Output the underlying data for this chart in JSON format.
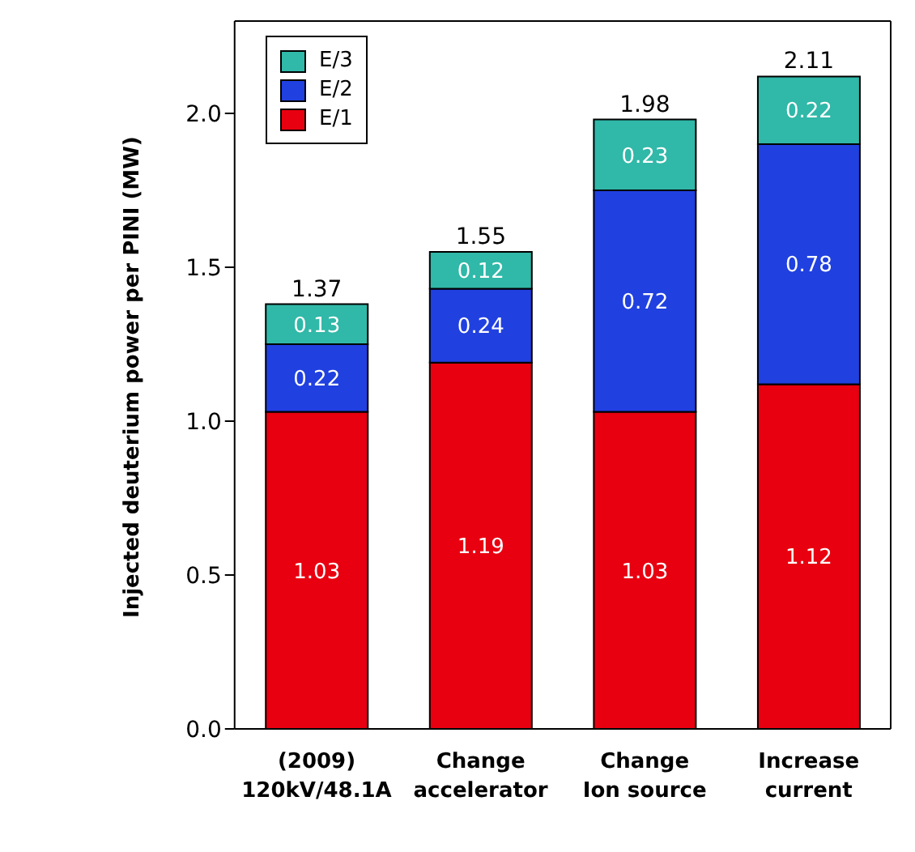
{
  "chart_data": {
    "type": "bar",
    "stacked": true,
    "ylabel": "Injected deuterium power per PINI (MW)",
    "categories": [
      "(2009)\n120kV/48.1A",
      "Change\naccelerator",
      "Change\nIon source",
      "Increase\ncurrent"
    ],
    "series": [
      {
        "name": "E/1",
        "color": "#e80010",
        "values": [
          1.03,
          1.19,
          1.03,
          1.12
        ]
      },
      {
        "name": "E/2",
        "color": "#2040e0",
        "values": [
          0.22,
          0.24,
          0.72,
          0.78
        ]
      },
      {
        "name": "E/3",
        "color": "#30b8a8",
        "values": [
          0.13,
          0.12,
          0.23,
          0.22
        ]
      }
    ],
    "totals": [
      "1.37",
      "1.55",
      "1.98",
      "2.11"
    ],
    "data_labels": true,
    "ylim": [
      0,
      2.3
    ],
    "yticks": [
      {
        "value": 0,
        "label": "0.0"
      },
      {
        "value": 0.5,
        "label": "0.5"
      },
      {
        "value": 1,
        "label": "1.0"
      },
      {
        "value": 1.5,
        "label": "1.5"
      },
      {
        "value": 2,
        "label": "2.0"
      }
    ],
    "grid": false,
    "legend": "top left"
  }
}
